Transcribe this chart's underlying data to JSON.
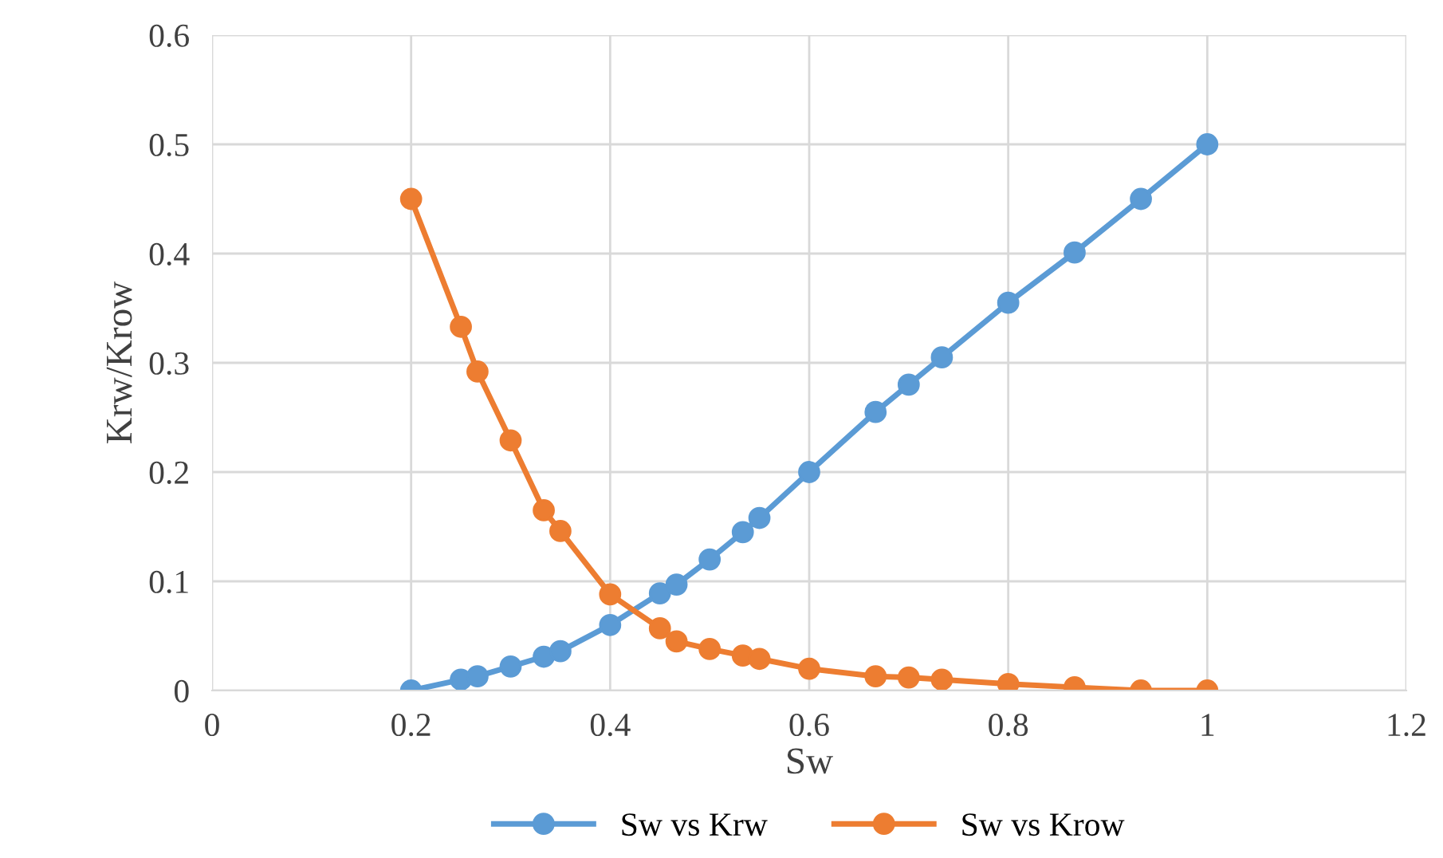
{
  "chart_data": {
    "type": "line",
    "xlabel": "Sw",
    "ylabel": "Krw/Krow",
    "x": [
      0.2,
      0.25,
      0.2667,
      0.3,
      0.3333,
      0.35,
      0.4,
      0.45,
      0.4667,
      0.5,
      0.5333,
      0.55,
      0.6,
      0.6667,
      0.7,
      0.7333,
      0.8,
      0.8667,
      0.9333,
      1.0
    ],
    "series": [
      {
        "name": "Sw vs Krw",
        "color": "#5b9bd5",
        "values": [
          0,
          0.01,
          0.013,
          0.022,
          0.031,
          0.036,
          0.06,
          0.089,
          0.097,
          0.12,
          0.145,
          0.158,
          0.2,
          0.255,
          0.28,
          0.305,
          0.355,
          0.401,
          0.45,
          0.5
        ]
      },
      {
        "name": "Sw vs Krow",
        "color": "#ed7d31",
        "values": [
          0.45,
          0.333,
          0.292,
          0.229,
          0.165,
          0.146,
          0.088,
          0.057,
          0.045,
          0.038,
          0.032,
          0.029,
          0.02,
          0.013,
          0.012,
          0.01,
          0.006,
          0.003,
          0,
          0
        ]
      }
    ],
    "xlim": [
      0,
      1.2
    ],
    "xticks": [
      0,
      0.2,
      0.4,
      0.6,
      0.8,
      1,
      1.2
    ],
    "ylim": [
      0,
      0.6
    ],
    "yticks": [
      0,
      0.1,
      0.2,
      0.3,
      0.4,
      0.5,
      0.6
    ],
    "grid": true,
    "legend": "bottom",
    "marker": "circle",
    "line_style": "solid"
  }
}
